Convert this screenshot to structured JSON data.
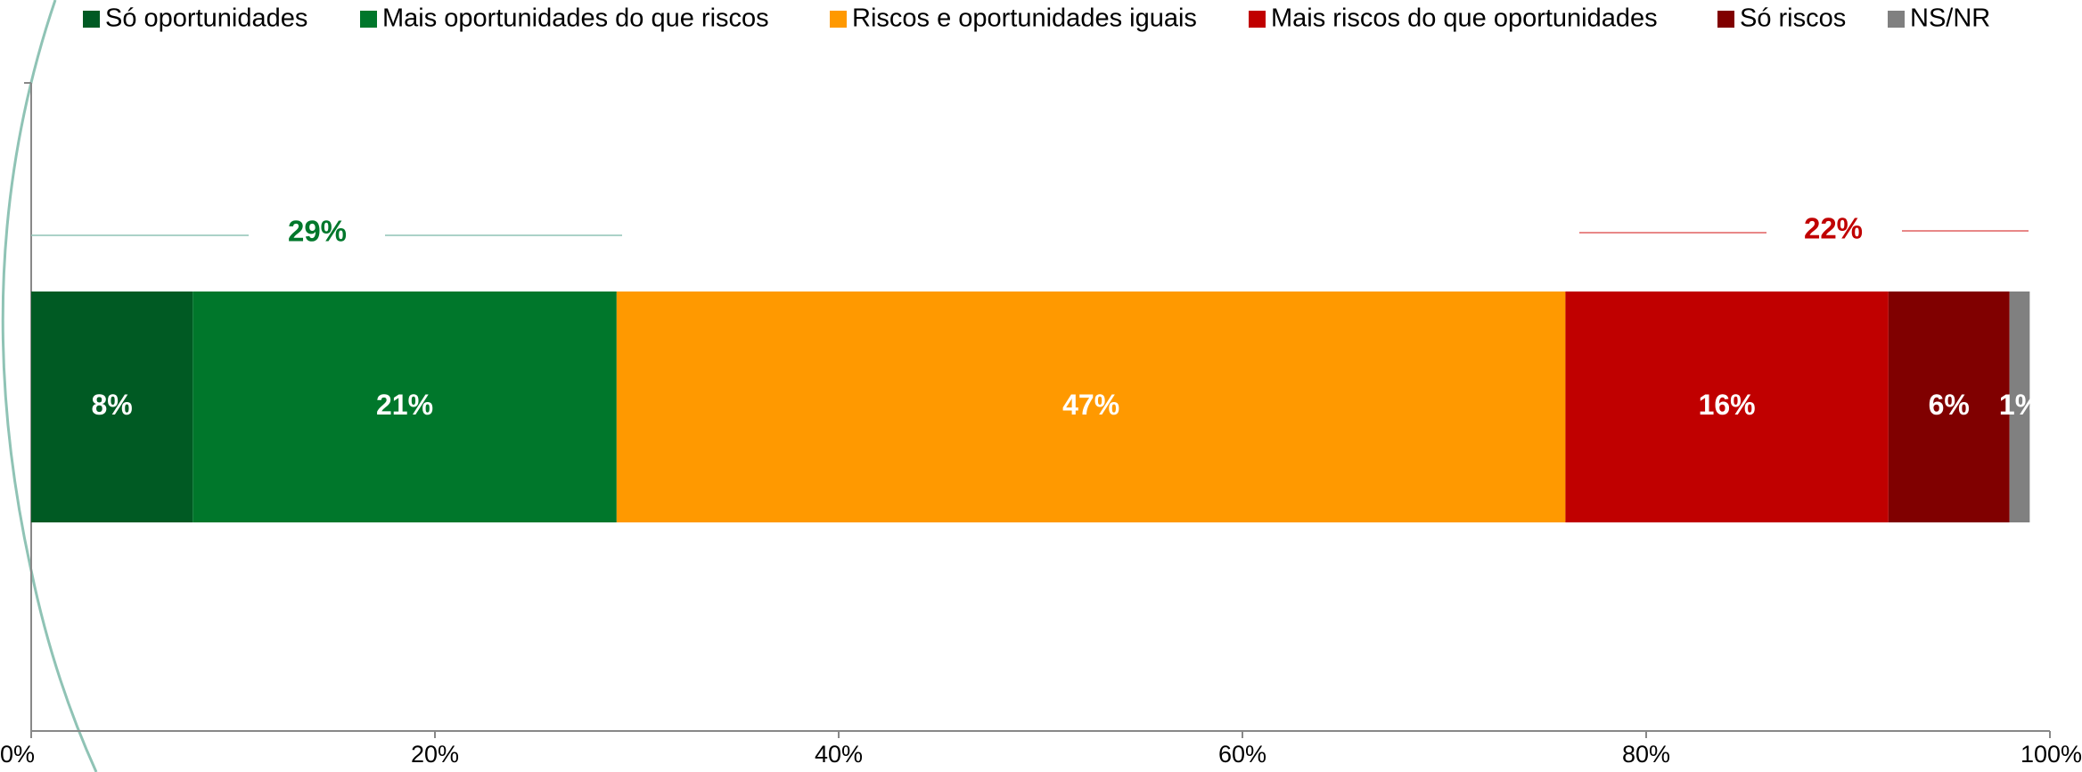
{
  "chart_data": {
    "type": "stacked_bar_horizontal",
    "series": [
      {
        "name": "Só oportunidades",
        "color": "#005a23",
        "values": [
          8
        ],
        "value_labels": [
          "8%"
        ]
      },
      {
        "name": "Mais oportunidades do que riscos",
        "color": "#00772b",
        "values": [
          21
        ],
        "value_labels": [
          "21%"
        ]
      },
      {
        "name": "Riscos e oportunidades iguais",
        "color": "#ff9900",
        "values": [
          47
        ],
        "value_labels": [
          "47%"
        ]
      },
      {
        "name": "Mais riscos do que oportunidades",
        "color": "#c00000",
        "values": [
          16
        ],
        "value_labels": [
          "16%"
        ]
      },
      {
        "name": "Só riscos",
        "color": "#800000",
        "values": [
          6
        ],
        "value_labels": [
          "6%"
        ]
      },
      {
        "name": "NS/NR",
        "color": "#808080",
        "values": [
          1
        ],
        "value_labels": [
          "1%"
        ]
      }
    ],
    "xlim": [
      0,
      100
    ],
    "xticks": [
      {
        "value": 0,
        "label": "0%"
      },
      {
        "value": 20,
        "label": "20%"
      },
      {
        "value": 40,
        "label": "40%"
      },
      {
        "value": 60,
        "label": "60%"
      },
      {
        "value": 80,
        "label": "80%"
      },
      {
        "value": 100,
        "label": "100%"
      }
    ],
    "annotations": [
      {
        "text": "29%",
        "color": "#00772b"
      },
      {
        "text": "22%",
        "color": "#c00000"
      }
    ]
  }
}
